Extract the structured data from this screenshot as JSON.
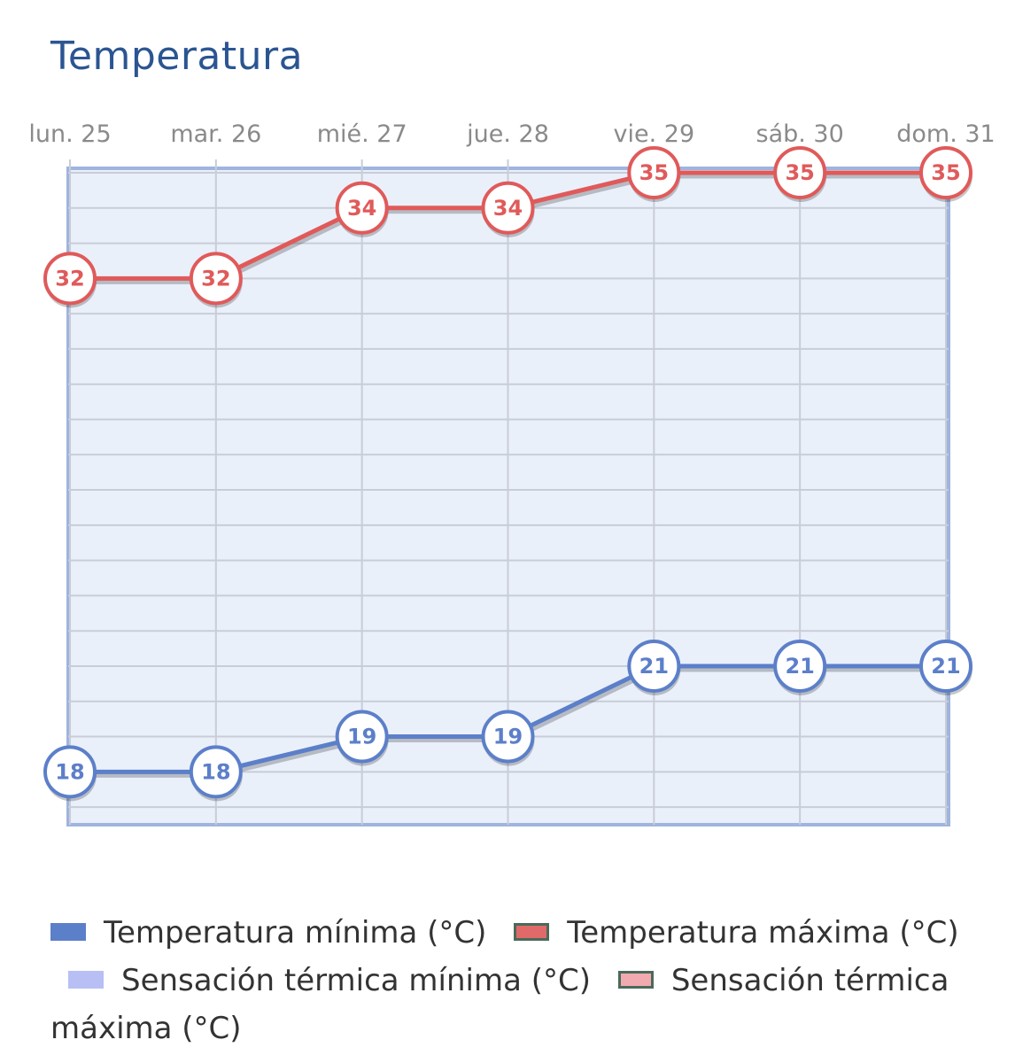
{
  "chart_data": {
    "type": "line",
    "title": "Temperatura",
    "categories": [
      "lun. 25",
      "mar. 26",
      "mié. 27",
      "jue. 28",
      "vie. 29",
      "sáb. 30",
      "dom. 31"
    ],
    "ylim": [
      16.5,
      35
    ],
    "grid": true,
    "series": [
      {
        "name": "Temperatura mínima (°C)",
        "values": [
          18,
          18,
          19,
          19,
          21,
          21,
          21
        ],
        "color": "#5c7fc9"
      },
      {
        "name": "Temperatura máxima (°C)",
        "values": [
          32,
          32,
          34,
          34,
          35,
          35,
          35
        ],
        "color": "#e05a5a"
      }
    ],
    "legend": {
      "placement": "bottom",
      "entries": [
        {
          "label": "Temperatura mínima (°C)",
          "color": "#5c7fc9",
          "border": "#5c7fc9"
        },
        {
          "label": "Temperatura máxima (°C)",
          "color": "#e06a6a",
          "border": "#4a6a5a"
        },
        {
          "label": "Sensación térmica mínima (°C)",
          "color": "#b8bff5",
          "border": "#b8bff5"
        },
        {
          "label": "Sensación térmica máxima (°C)",
          "color": "#f0aab0",
          "border": "#4a6a5a"
        }
      ]
    }
  }
}
